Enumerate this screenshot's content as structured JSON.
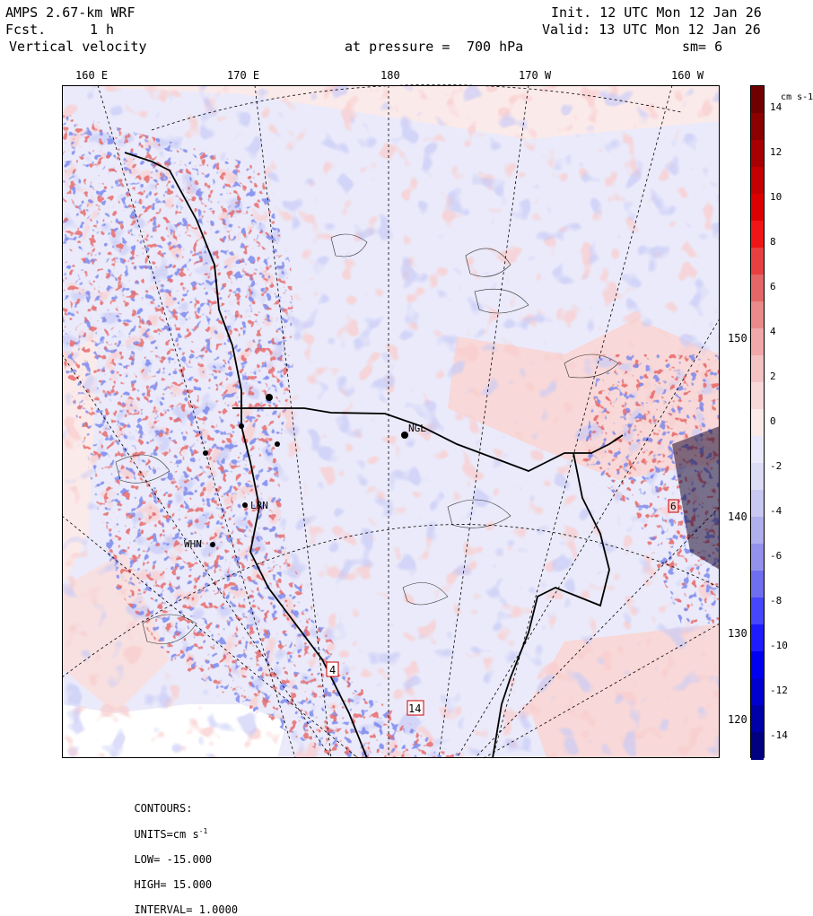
{
  "header": {
    "model": "AMPS 2.67-km WRF",
    "fcst_label": "Fcst.",
    "fcst_value": "1 h",
    "field": "Vertical velocity",
    "init": "Init. 12 UTC Mon 12 Jan 26",
    "valid": "Valid: 13 UTC Mon 12 Jan 26",
    "pressure_label": "at pressure =",
    "pressure_value": "700 hPa",
    "smoothing": "sm= 6"
  },
  "longitude_labels": [
    "160 E",
    "170 E",
    "180",
    "170 W",
    "160 W"
  ],
  "latitude_labels": [
    "150 W",
    "140 W",
    "130 W",
    "120 W"
  ],
  "colorbar": {
    "units": "cm s-1",
    "tick_labels": [
      "14",
      "12",
      "10",
      "8",
      "6",
      "4",
      "2",
      "0",
      "-2",
      "-4",
      "-6",
      "-8",
      "-10",
      "-12",
      "-14"
    ],
    "range": [
      -15,
      15
    ],
    "colors": [
      "#000080",
      "#0000a8",
      "#0000d0",
      "#0000f0",
      "#1c1cff",
      "#4646ff",
      "#6e6ef0",
      "#9292ec",
      "#afafee",
      "#c8c8f2",
      "#dcdcf6",
      "#eaeafa",
      "#fbeaea",
      "#f8d8d8",
      "#f4c2c2",
      "#f0a8a8",
      "#ea8a8a",
      "#e56666",
      "#e84040",
      "#f01616",
      "#dd0000",
      "#c40000",
      "#a80000",
      "#8c0000",
      "#700000"
    ]
  },
  "station_labels": [
    "NGL",
    "LRN",
    "WHN",
    "4",
    "14",
    "6"
  ],
  "footer": {
    "contours_label": "CONTOURS:",
    "units_label": "UNITS=cm s",
    "units_exp": "-1",
    "low": "LOW= -15.000",
    "high": "HIGH= 15.000",
    "interval": "INTERVAL= 1.0000"
  }
}
